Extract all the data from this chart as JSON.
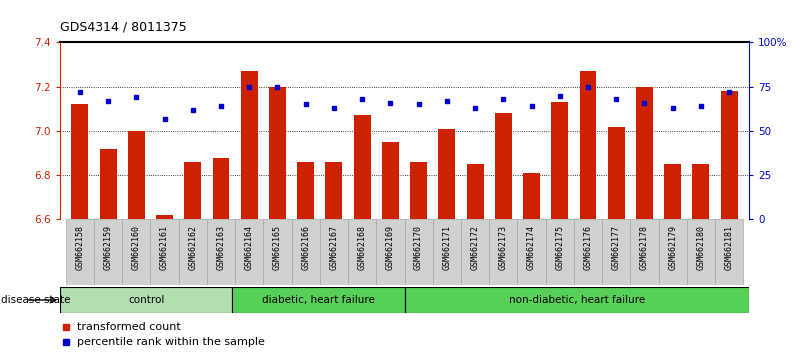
{
  "title": "GDS4314 / 8011375",
  "samples": [
    "GSM662158",
    "GSM662159",
    "GSM662160",
    "GSM662161",
    "GSM662162",
    "GSM662163",
    "GSM662164",
    "GSM662165",
    "GSM662166",
    "GSM662167",
    "GSM662168",
    "GSM662169",
    "GSM662170",
    "GSM662171",
    "GSM662172",
    "GSM662173",
    "GSM662174",
    "GSM662175",
    "GSM662176",
    "GSM662177",
    "GSM662178",
    "GSM662179",
    "GSM662180",
    "GSM662181"
  ],
  "bar_values": [
    7.12,
    6.92,
    7.0,
    6.62,
    6.86,
    6.88,
    7.27,
    7.2,
    6.86,
    6.86,
    7.07,
    6.95,
    6.86,
    7.01,
    6.85,
    7.08,
    6.81,
    7.13,
    7.27,
    7.02,
    7.2,
    6.85,
    6.85,
    7.18
  ],
  "dot_values": [
    72,
    67,
    69,
    57,
    62,
    64,
    75,
    75,
    65,
    63,
    68,
    66,
    65,
    67,
    63,
    68,
    64,
    70,
    75,
    68,
    66,
    63,
    64,
    72
  ],
  "groups": [
    {
      "label": "control",
      "start": 0,
      "end": 5
    },
    {
      "label": "diabetic, heart failure",
      "start": 6,
      "end": 11
    },
    {
      "label": "non-diabetic, heart failure",
      "start": 12,
      "end": 23
    }
  ],
  "group_colors": [
    "#b2dfb2",
    "#57d057",
    "#57d057"
  ],
  "ylim_left": [
    6.6,
    7.4
  ],
  "ylim_right": [
    0,
    100
  ],
  "yticks_left": [
    6.6,
    6.8,
    7.0,
    7.2,
    7.4
  ],
  "yticks_right": [
    0,
    25,
    50,
    75,
    100
  ],
  "ytick_labels_right": [
    "0",
    "25",
    "50",
    "75",
    "100%"
  ],
  "bar_color": "#cc2200",
  "dot_color": "#0000cc",
  "bar_width": 0.6,
  "disease_state_label": "disease state",
  "legend_items": [
    {
      "color": "#cc2200",
      "label": "transformed count"
    },
    {
      "color": "#0000cc",
      "label": "percentile rank within the sample"
    }
  ]
}
